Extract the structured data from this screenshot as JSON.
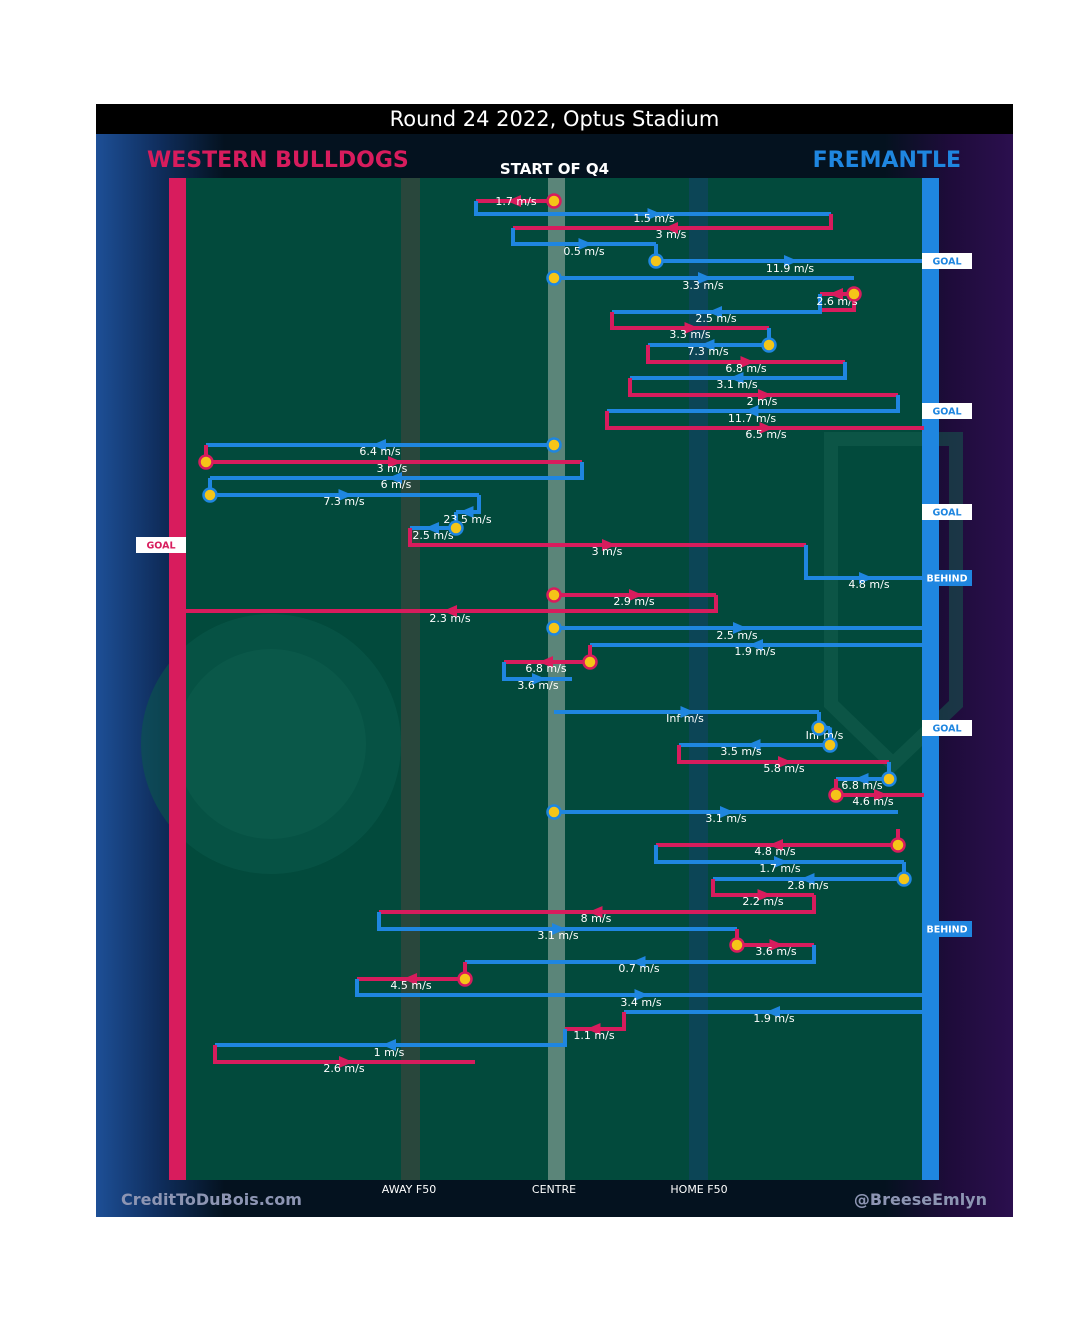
{
  "title": "Round 24 2022, Optus Stadium",
  "period_label": "START OF Q4",
  "teams": {
    "left": {
      "name": "WESTERN BULLDOGS",
      "color": "#d81c5d"
    },
    "right": {
      "name": "FREMANTLE",
      "color": "#1f86e0"
    }
  },
  "field_color": "#024a3c",
  "zones": [
    {
      "label": "AWAY F50"
    },
    {
      "label": "CENTRE"
    },
    {
      "label": "HOME F50"
    }
  ],
  "footer": {
    "left": "CreditToDuBois.com",
    "right": "@BreeseEmlyn"
  },
  "chart_data": {
    "type": "diagram",
    "chains": [
      {
        "team": "Western Bulldogs",
        "speed": "1.7 m/s"
      },
      {
        "team": "Fremantle",
        "speed": "1.5 m/s"
      },
      {
        "team": "Western Bulldogs",
        "speed": "3 m/s"
      },
      {
        "team": "Fremantle",
        "speed": "0.5 m/s"
      },
      {
        "team": "Fremantle",
        "speed": "11.9 m/s",
        "result": "GOAL"
      },
      {
        "team": "Fremantle",
        "speed": "3.3 m/s"
      },
      {
        "team": "Western Bulldogs",
        "speed": "2.6 m/s"
      },
      {
        "team": "Fremantle",
        "speed": "2.5 m/s"
      },
      {
        "team": "Western Bulldogs",
        "speed": "3.3 m/s"
      },
      {
        "team": "Fremantle",
        "speed": "7.3 m/s"
      },
      {
        "team": "Western Bulldogs",
        "speed": "6.8 m/s"
      },
      {
        "team": "Fremantle",
        "speed": "3.1 m/s"
      },
      {
        "team": "Western Bulldogs",
        "speed": "2 m/s"
      },
      {
        "team": "Fremantle",
        "speed": "11.7 m/s",
        "result": "GOAL"
      },
      {
        "team": "Western Bulldogs",
        "speed": "6.5 m/s"
      },
      {
        "team": "Fremantle",
        "speed": "6.4 m/s"
      },
      {
        "team": "Western Bulldogs",
        "speed": "3 m/s"
      },
      {
        "team": "Fremantle",
        "speed": "6 m/s"
      },
      {
        "team": "Fremantle",
        "speed": "7.3 m/s"
      },
      {
        "team": "Fremantle",
        "speed": "23.5 m/s",
        "result": "GOAL"
      },
      {
        "team": "Fremantle",
        "speed": "2.5 m/s"
      },
      {
        "team": "Western Bulldogs",
        "speed": "3 m/s",
        "result": "GOAL"
      },
      {
        "team": "Fremantle",
        "speed": "4.8 m/s",
        "result": "BEHIND"
      },
      {
        "team": "Western Bulldogs",
        "speed": "2.9 m/s"
      },
      {
        "team": "Western Bulldogs",
        "speed": "2.3 m/s"
      },
      {
        "team": "Fremantle",
        "speed": "2.5 m/s"
      },
      {
        "team": "Fremantle",
        "speed": "1.9 m/s"
      },
      {
        "team": "Western Bulldogs",
        "speed": "6.8 m/s"
      },
      {
        "team": "Fremantle",
        "speed": "3.6 m/s"
      },
      {
        "team": "Fremantle",
        "speed": "Inf m/s"
      },
      {
        "team": "Fremantle",
        "speed": "Inf m/s",
        "result": "GOAL"
      },
      {
        "team": "Fremantle",
        "speed": "3.5 m/s"
      },
      {
        "team": "Western Bulldogs",
        "speed": "5.8 m/s"
      },
      {
        "team": "Fremantle",
        "speed": "6.8 m/s"
      },
      {
        "team": "Western Bulldogs",
        "speed": "4.6 m/s"
      },
      {
        "team": "Fremantle",
        "speed": "3.1 m/s"
      },
      {
        "team": "Western Bulldogs",
        "speed": "4.8 m/s"
      },
      {
        "team": "Fremantle",
        "speed": "1.7 m/s"
      },
      {
        "team": "Fremantle",
        "speed": "2.8 m/s"
      },
      {
        "team": "Western Bulldogs",
        "speed": "2.2 m/s"
      },
      {
        "team": "Western Bulldogs",
        "speed": "8 m/s"
      },
      {
        "team": "Fremantle",
        "speed": "3.1 m/s",
        "result": "BEHIND"
      },
      {
        "team": "Western Bulldogs",
        "speed": "3.6 m/s"
      },
      {
        "team": "Fremantle",
        "speed": "0.7 m/s"
      },
      {
        "team": "Western Bulldogs",
        "speed": "4.5 m/s"
      },
      {
        "team": "Fremantle",
        "speed": "3.4 m/s"
      },
      {
        "team": "Fremantle",
        "speed": "1.9 m/s"
      },
      {
        "team": "Western Bulldogs",
        "speed": "1.1 m/s"
      },
      {
        "team": "Fremantle",
        "speed": "1 m/s"
      },
      {
        "team": "Western Bulldogs",
        "speed": "2.6 m/s"
      }
    ]
  }
}
